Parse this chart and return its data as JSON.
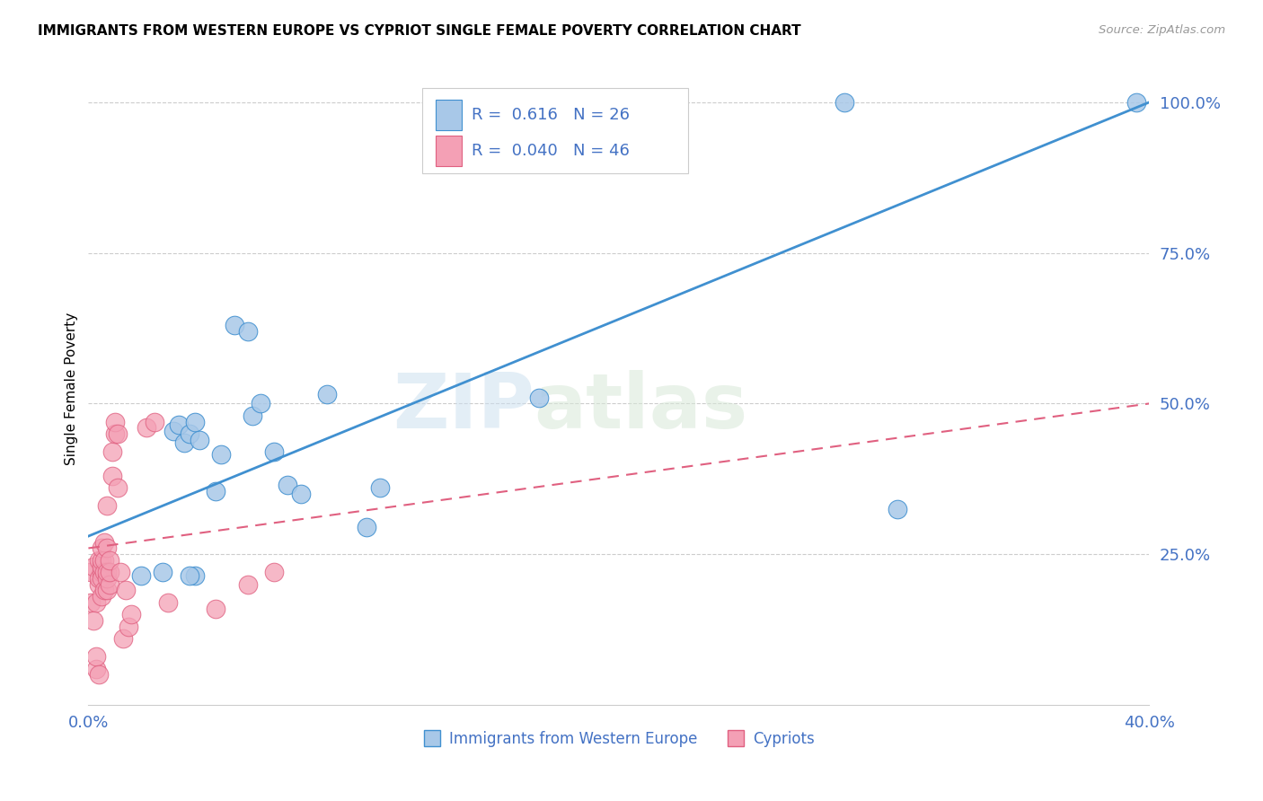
{
  "title": "IMMIGRANTS FROM WESTERN EUROPE VS CYPRIOT SINGLE FEMALE POVERTY CORRELATION CHART",
  "source": "Source: ZipAtlas.com",
  "ylabel": "Single Female Poverty",
  "legend_blue_r": "0.616",
  "legend_blue_n": "26",
  "legend_pink_r": "0.040",
  "legend_pink_n": "46",
  "legend_label_blue": "Immigrants from Western Europe",
  "legend_label_pink": "Cypriots",
  "xlim": [
    0.0,
    0.4
  ],
  "ylim": [
    0.0,
    1.05
  ],
  "yticks": [
    0.25,
    0.5,
    0.75,
    1.0
  ],
  "ytick_labels": [
    "25.0%",
    "50.0%",
    "75.0%",
    "100.0%"
  ],
  "xticks": [
    0.0,
    0.05,
    0.1,
    0.15,
    0.2,
    0.25,
    0.3,
    0.35,
    0.4
  ],
  "xtick_labels": [
    "0.0%",
    "",
    "",
    "",
    "",
    "",
    "",
    "",
    "40.0%"
  ],
  "blue_color": "#a8c8e8",
  "pink_color": "#f4a0b5",
  "blue_line_color": "#4090d0",
  "pink_line_color": "#e06080",
  "blue_trend_x": [
    0.0,
    0.4
  ],
  "blue_trend_y": [
    0.28,
    1.0
  ],
  "pink_trend_x": [
    0.0,
    0.4
  ],
  "pink_trend_y": [
    0.26,
    0.5
  ],
  "watermark_zip": "ZIP",
  "watermark_atlas": "atlas",
  "blue_x": [
    0.02,
    0.028,
    0.032,
    0.034,
    0.036,
    0.038,
    0.04,
    0.042,
    0.048,
    0.05,
    0.055,
    0.06,
    0.062,
    0.065,
    0.07,
    0.075,
    0.08,
    0.09,
    0.105,
    0.11,
    0.17,
    0.305,
    0.04,
    0.038,
    0.395,
    0.285
  ],
  "blue_y": [
    0.215,
    0.22,
    0.455,
    0.465,
    0.435,
    0.45,
    0.47,
    0.44,
    0.355,
    0.415,
    0.63,
    0.62,
    0.48,
    0.5,
    0.42,
    0.365,
    0.35,
    0.515,
    0.295,
    0.36,
    0.51,
    0.325,
    0.215,
    0.215,
    1.0,
    1.0
  ],
  "pink_x": [
    0.001,
    0.001,
    0.002,
    0.002,
    0.003,
    0.003,
    0.003,
    0.004,
    0.004,
    0.004,
    0.004,
    0.005,
    0.005,
    0.005,
    0.005,
    0.005,
    0.005,
    0.006,
    0.006,
    0.006,
    0.006,
    0.007,
    0.007,
    0.007,
    0.007,
    0.007,
    0.008,
    0.008,
    0.008,
    0.009,
    0.009,
    0.01,
    0.01,
    0.011,
    0.011,
    0.012,
    0.013,
    0.014,
    0.015,
    0.016,
    0.022,
    0.025,
    0.03,
    0.048,
    0.06,
    0.07
  ],
  "pink_y": [
    0.17,
    0.22,
    0.14,
    0.23,
    0.06,
    0.08,
    0.17,
    0.05,
    0.2,
    0.21,
    0.24,
    0.18,
    0.22,
    0.21,
    0.23,
    0.24,
    0.26,
    0.19,
    0.22,
    0.24,
    0.27,
    0.19,
    0.21,
    0.22,
    0.26,
    0.33,
    0.2,
    0.22,
    0.24,
    0.38,
    0.42,
    0.45,
    0.47,
    0.36,
    0.45,
    0.22,
    0.11,
    0.19,
    0.13,
    0.15,
    0.46,
    0.47,
    0.17,
    0.16,
    0.2,
    0.22
  ]
}
